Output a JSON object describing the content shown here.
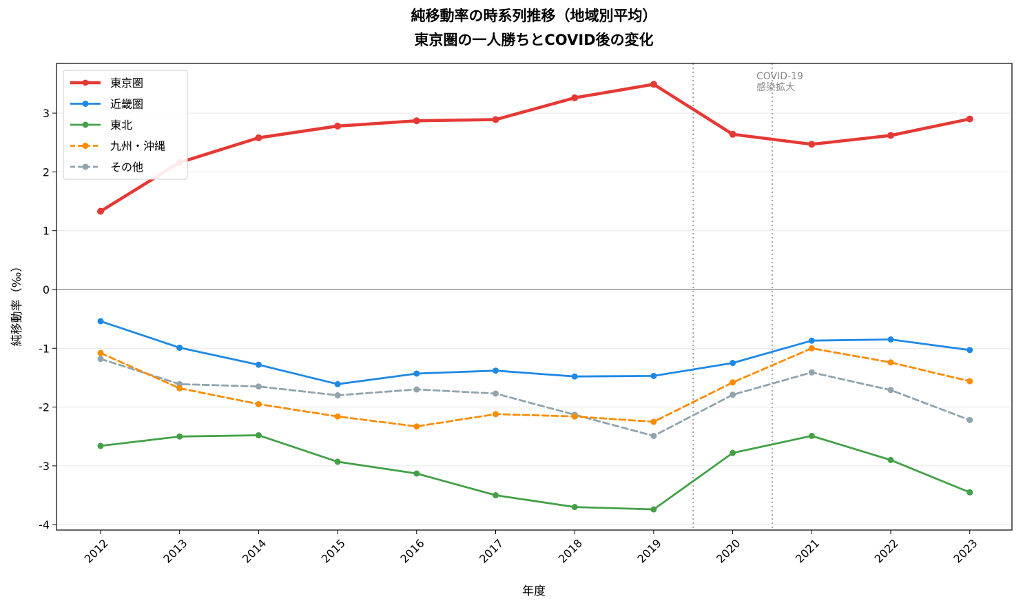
{
  "chart_data": {
    "type": "line",
    "title": [
      "純移動率の時系列推移（地域別平均）",
      "東京圏の一人勝ちとCOVID後の変化"
    ],
    "xlabel": "年度",
    "ylabel": "純移動率（‰）",
    "x": [
      "2012",
      "2013",
      "2014",
      "2015",
      "2016",
      "2017",
      "2018",
      "2019",
      "2020",
      "2021",
      "2022",
      "2023"
    ],
    "yticks": [
      -4,
      -3,
      -2,
      -1,
      0,
      1,
      2,
      3
    ],
    "ytick_labels": [
      "-4",
      "-3",
      "-2",
      "-1",
      "0",
      "1",
      "2",
      "3"
    ],
    "ylim": [
      -4.1,
      3.85
    ],
    "grid": "horizontal",
    "legend_position": "top-left",
    "series": [
      {
        "name": "東京圏",
        "color": "#e53935",
        "dashed": false,
        "bold": true,
        "values": [
          1.33,
          2.16,
          2.58,
          2.78,
          2.87,
          2.89,
          3.26,
          3.49,
          2.64,
          2.47,
          2.62,
          2.9
        ]
      },
      {
        "name": "近畿圏",
        "color": "#1e88e5",
        "dashed": false,
        "bold": false,
        "values": [
          -0.54,
          -0.99,
          -1.28,
          -1.61,
          -1.43,
          -1.38,
          -1.48,
          -1.47,
          -1.25,
          -0.87,
          -0.85,
          -1.03
        ]
      },
      {
        "name": "東北",
        "color": "#43a047",
        "dashed": false,
        "bold": false,
        "values": [
          -2.66,
          -2.5,
          -2.48,
          -2.93,
          -3.13,
          -3.5,
          -3.7,
          -3.74,
          -2.78,
          -2.49,
          -2.9,
          -3.45
        ]
      },
      {
        "name": "九州・沖縄",
        "color": "#fb8c00",
        "dashed": true,
        "bold": false,
        "values": [
          -1.08,
          -1.68,
          -1.95,
          -2.16,
          -2.33,
          -2.12,
          -2.16,
          -2.25,
          -1.58,
          -1.0,
          -1.24,
          -1.56
        ]
      },
      {
        "name": "その他",
        "color": "#90a4ae",
        "dashed": true,
        "bold": false,
        "values": [
          -1.18,
          -1.61,
          -1.65,
          -1.8,
          -1.7,
          -1.77,
          -2.13,
          -2.49,
          -1.79,
          -1.41,
          -1.71,
          -2.22
        ]
      }
    ],
    "reference_lines": [
      {
        "x": 2019.5,
        "style": "dotted",
        "color": "#999999"
      },
      {
        "x": 2020.5,
        "style": "dotted",
        "color": "#999999"
      }
    ],
    "annotation": {
      "lines": [
        "COVID-19",
        "感染拡大"
      ],
      "x": 2020.3,
      "y": 3.75,
      "color": "#888888"
    }
  }
}
